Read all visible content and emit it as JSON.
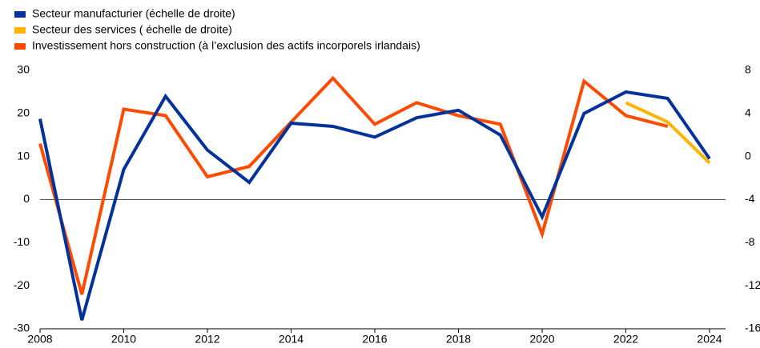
{
  "chart_data": {
    "type": "line",
    "x": [
      2008,
      2009,
      2010,
      2011,
      2012,
      2013,
      2014,
      2015,
      2016,
      2017,
      2018,
      2019,
      2020,
      2021,
      2022,
      2023,
      2024
    ],
    "series": [
      {
        "name": "Secteur manufacturier (échelle de droite)",
        "color": "#003299",
        "axis": "y2",
        "values": [
          3.5,
          -15.2,
          -1.2,
          5.6,
          0.6,
          -2.4,
          3.1,
          2.8,
          1.8,
          3.6,
          4.3,
          2.0,
          -5.6,
          4.0,
          6.0,
          5.4,
          -0.2
        ]
      },
      {
        "name": "Secteur des services ( échelle de droite)",
        "color": "#ffb400",
        "axis": "y2",
        "values": [
          null,
          null,
          null,
          null,
          null,
          null,
          null,
          null,
          null,
          null,
          null,
          null,
          null,
          null,
          5.0,
          3.2,
          -0.6
        ]
      },
      {
        "name": "Investissement hors construction (à l’exclusion des actifs incorporels irlandais)",
        "color": "#ff4b00",
        "values": [
          13,
          -22,
          21,
          19.5,
          5.3,
          7.7,
          18,
          28.2,
          17.5,
          22.5,
          19.5,
          17.5,
          -8,
          27.5,
          19.5,
          17,
          null
        ]
      }
    ],
    "xlim": [
      2008,
      2024
    ],
    "xticks": [
      2008,
      2010,
      2012,
      2014,
      2016,
      2018,
      2020,
      2022,
      2024
    ],
    "ylim": [
      -30,
      30
    ],
    "yticks": [
      -30,
      -20,
      -10,
      0,
      10,
      20,
      30
    ],
    "y2lim": [
      -16,
      8
    ],
    "y2ticks": [
      -16,
      -12,
      -8,
      -4,
      0,
      4,
      8
    ],
    "legend": "top-left"
  }
}
